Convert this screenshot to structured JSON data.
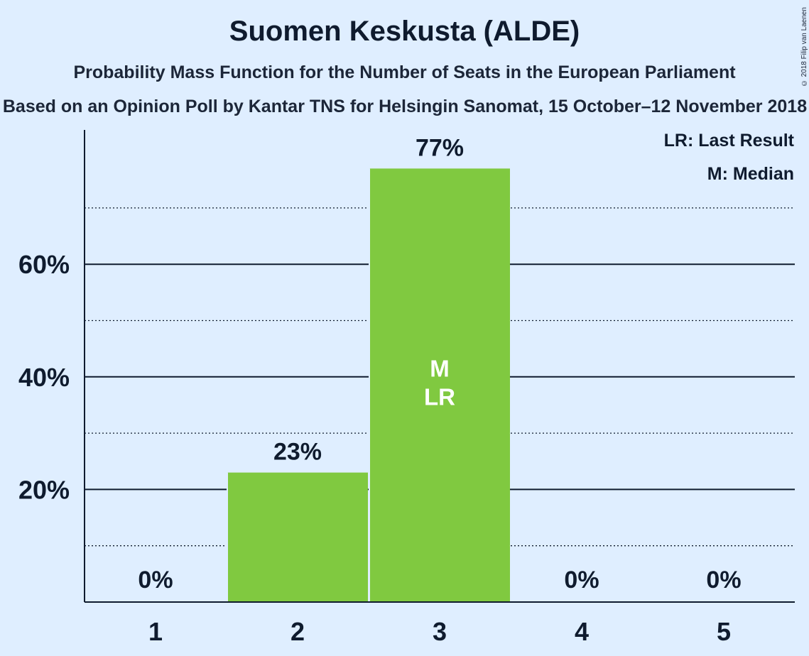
{
  "chart_data": {
    "type": "bar",
    "title": "Suomen Keskusta (ALDE)",
    "subtitle": "Probability Mass Function for the Number of Seats in the European Parliament",
    "subtitle2": "Based on an Opinion Poll by Kantar TNS for Helsingin Sanomat, 15 October–12 November 2018",
    "copyright": "© 2018 Filip van Laenen",
    "categories": [
      "1",
      "2",
      "3",
      "4",
      "5"
    ],
    "values": [
      0,
      23,
      77,
      0,
      0
    ],
    "value_labels": [
      "0%",
      "23%",
      "77%",
      "0%",
      "0%"
    ],
    "bar_annotations": [
      [],
      [],
      [
        "M",
        "LR"
      ],
      [],
      []
    ],
    "y_ticks": [
      20,
      40,
      60
    ],
    "y_tick_labels": [
      "20%",
      "40%",
      "60%"
    ],
    "ylim": [
      0,
      84
    ],
    "grid": true,
    "bar_color": "#80c940",
    "legend": {
      "placement": "top-right",
      "items": [
        "LR: Last Result",
        "M: Median"
      ]
    }
  }
}
